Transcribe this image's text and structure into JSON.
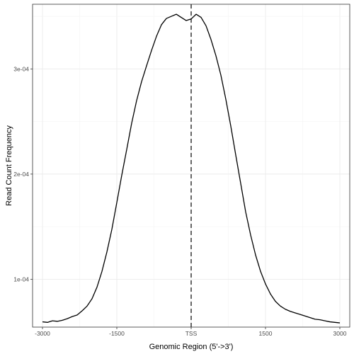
{
  "chart_data": {
    "type": "line",
    "xlabel": "Genomic Region (5'->3')",
    "ylabel": "Read Count Frequency",
    "xlim": [
      -3200,
      3200
    ],
    "ylim": [
      5.45e-05,
      0.0003615
    ],
    "x_ticks": [
      {
        "value": -3000,
        "label": "-3000"
      },
      {
        "value": -1500,
        "label": "-1500"
      },
      {
        "value": 0,
        "label": "TSS"
      },
      {
        "value": 1500,
        "label": "1500"
      },
      {
        "value": 3000,
        "label": "3000"
      }
    ],
    "y_ticks": [
      {
        "value": 0.0001,
        "label": "1e-04"
      },
      {
        "value": 0.0002,
        "label": "2e-04"
      },
      {
        "value": 0.0003,
        "label": "3e-04"
      }
    ],
    "grid": true,
    "vline": {
      "x": 0,
      "style": "dashed"
    },
    "line_color": "#000000",
    "series": [
      {
        "x": [
          -3000,
          -2900,
          -2800,
          -2700,
          -2600,
          -2500,
          -2400,
          -2300,
          -2200,
          -2100,
          -2000,
          -1900,
          -1800,
          -1700,
          -1600,
          -1500,
          -1400,
          -1300,
          -1200,
          -1100,
          -1000,
          -900,
          -800,
          -700,
          -600,
          -500,
          -400,
          -300,
          -200,
          -100,
          0,
          100,
          200,
          300,
          400,
          500,
          600,
          700,
          800,
          900,
          1000,
          1100,
          1200,
          1300,
          1400,
          1500,
          1600,
          1700,
          1800,
          1900,
          2000,
          2100,
          2200,
          2300,
          2400,
          2500,
          2600,
          2700,
          2800,
          2900,
          3000
        ],
        "y": [
          5.95e-05,
          5.9e-05,
          6.05e-05,
          6e-05,
          6.1e-05,
          6.25e-05,
          6.45e-05,
          6.6e-05,
          7e-05,
          7.45e-05,
          8.15e-05,
          9.25e-05,
          0.0001075,
          0.000126,
          0.0001475,
          0.000173,
          0.000199,
          0.0002235,
          0.0002485,
          0.00027,
          0.000288,
          0.000303,
          0.0003175,
          0.000331,
          0.000342,
          0.000348,
          0.00035,
          0.000352,
          0.000349,
          0.000346,
          0.0003475,
          0.000352,
          0.000349,
          0.000341,
          0.000328,
          0.0003125,
          0.000294,
          0.000271,
          0.0002455,
          0.000218,
          0.000191,
          0.000164,
          0.000142,
          0.000123,
          0.0001075,
          9.55e-05,
          8.6e-05,
          7.9e-05,
          7.45e-05,
          7.15e-05,
          6.95e-05,
          6.8e-05,
          6.65e-05,
          6.5e-05,
          6.35e-05,
          6.2e-05,
          6.15e-05,
          6.05e-05,
          5.95e-05,
          5.9e-05,
          5.85e-05
        ]
      }
    ]
  }
}
